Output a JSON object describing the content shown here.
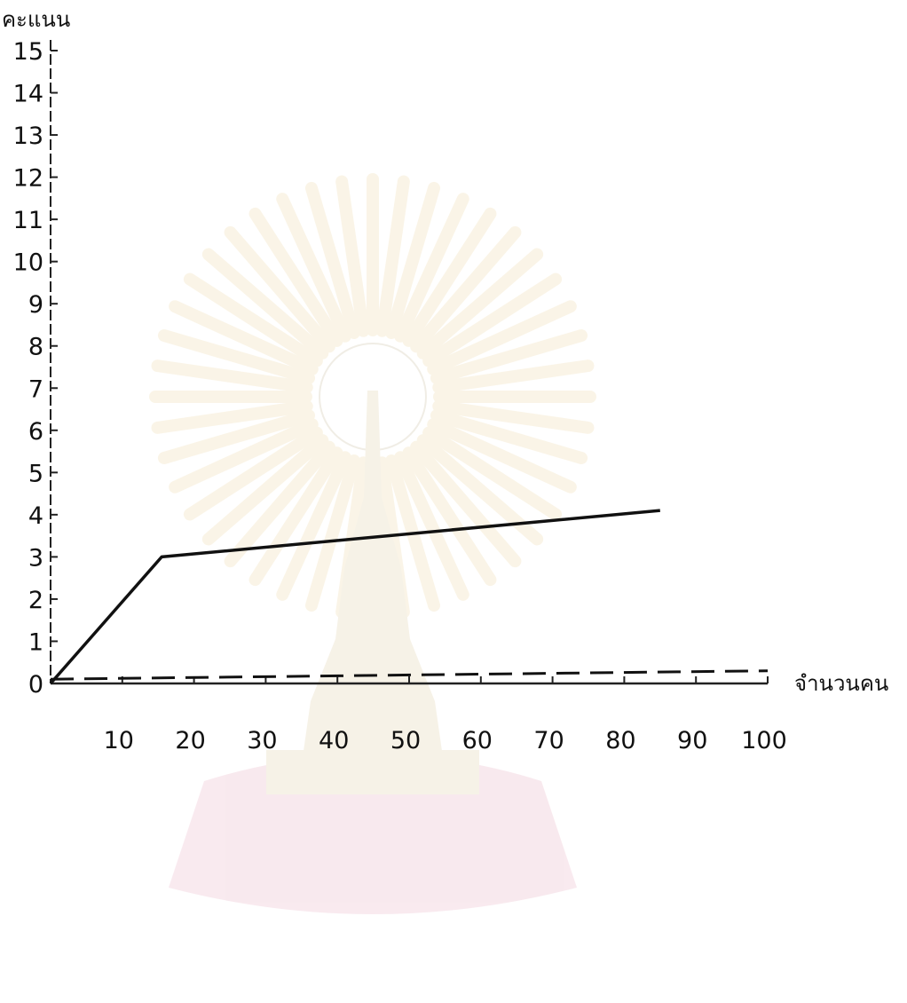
{
  "chart_data": {
    "type": "line",
    "title": "",
    "ylabel": "คะแนน",
    "xlabel": "จำนวนคน",
    "xlim": [
      0,
      100
    ],
    "ylim": [
      0,
      15
    ],
    "xticks": [
      10,
      20,
      30,
      40,
      50,
      60,
      70,
      80,
      90,
      100
    ],
    "yticks": [
      0,
      1,
      2,
      3,
      4,
      5,
      6,
      7,
      8,
      9,
      10,
      11,
      12,
      13,
      14,
      15
    ],
    "grid": false,
    "legend": "none",
    "series": [
      {
        "style": "solid",
        "x": [
          0,
          15.5,
          85
        ],
        "y": [
          0,
          3.0,
          4.1
        ]
      },
      {
        "style": "dashed",
        "x": [
          0,
          100
        ],
        "y": [
          0.1,
          0.3
        ]
      }
    ],
    "watermark": "university emblem"
  }
}
